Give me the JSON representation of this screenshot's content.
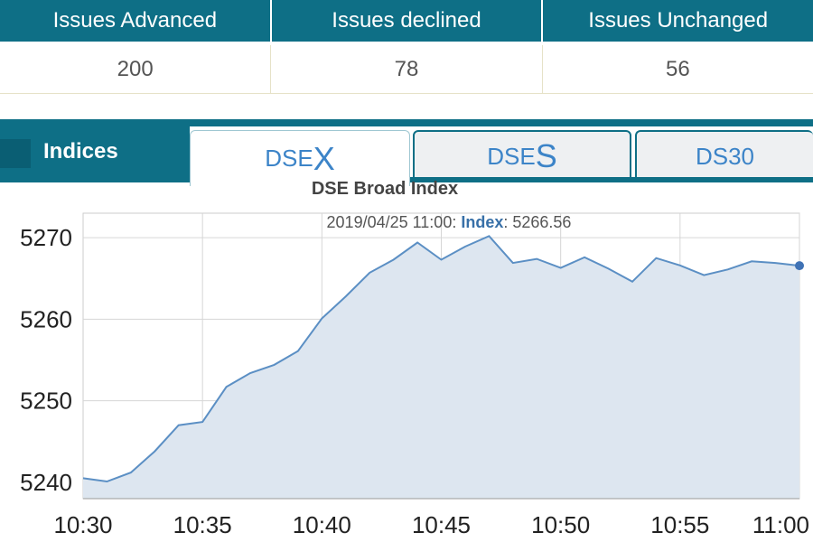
{
  "summary": {
    "headers": [
      "Issues Advanced",
      "Issues declined",
      "Issues Unchanged"
    ],
    "values": [
      "200",
      "78",
      "56"
    ]
  },
  "tabs": {
    "indices_label": "Indices",
    "dsex": {
      "prefix": "DSE",
      "suffix": "X"
    },
    "dses": {
      "prefix": "DSE",
      "suffix": "S"
    },
    "ds30": "DS30"
  },
  "tooltip": {
    "time": "2019/04/25 11:00",
    "key": "Index",
    "value": "5266.56"
  },
  "colors": {
    "header_bg": "#0e6f86",
    "line": "#5b8fc4",
    "area": "#dde6f0"
  },
  "chart_data": {
    "type": "area",
    "title": "DSE Broad Index",
    "xlabel": "",
    "ylabel": "",
    "x_ticks": [
      "10:30",
      "10:35",
      "10:40",
      "10:45",
      "10:50",
      "10:55",
      "11:00"
    ],
    "y_ticks": [
      5240,
      5250,
      5260,
      5270
    ],
    "ylim": [
      5238,
      5273
    ],
    "grid": true,
    "series": [
      {
        "x": [
          "10:30",
          "10:31",
          "10:32",
          "10:33",
          "10:34",
          "10:35",
          "10:36",
          "10:37",
          "10:38",
          "10:39",
          "10:40",
          "10:41",
          "10:42",
          "10:43",
          "10:44",
          "10:45",
          "10:46",
          "10:47",
          "10:48",
          "10:49",
          "10:50",
          "10:51",
          "10:52",
          "10:53",
          "10:54",
          "10:55",
          "10:56",
          "10:57",
          "10:58",
          "10:59",
          "11:00"
        ],
        "values": [
          5240.5,
          5240.1,
          5241.2,
          5243.8,
          5247.0,
          5247.4,
          5251.7,
          5253.4,
          5254.4,
          5256.1,
          5260.1,
          5262.8,
          5265.7,
          5267.3,
          5269.4,
          5267.3,
          5268.9,
          5270.2,
          5266.9,
          5267.4,
          5266.3,
          5267.6,
          5266.2,
          5264.6,
          5267.5,
          5266.6,
          5265.4,
          5266.1,
          5267.1,
          5266.9,
          5266.56
        ]
      }
    ]
  }
}
